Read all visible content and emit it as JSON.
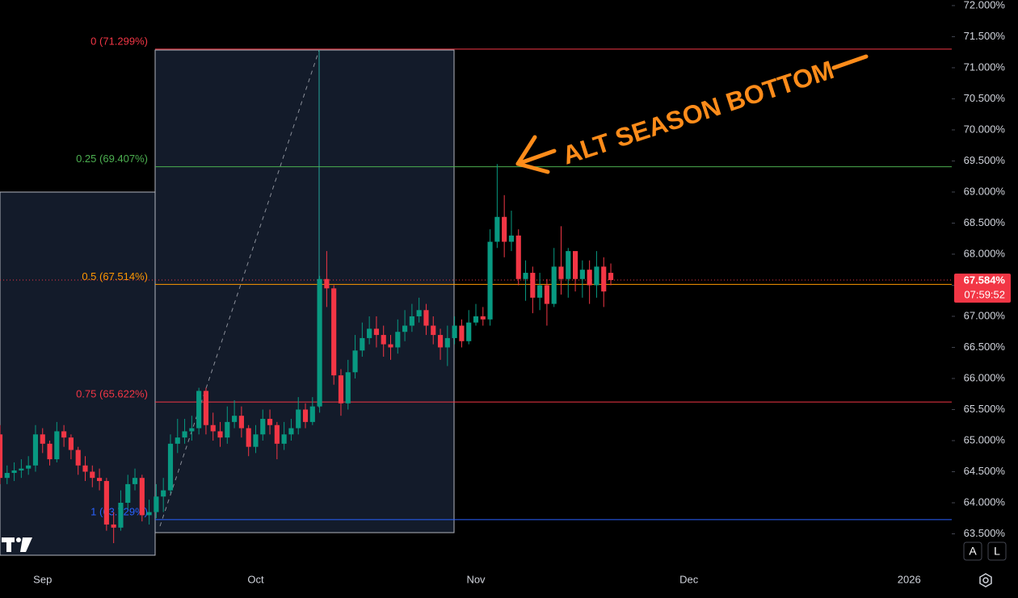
{
  "chart_data": {
    "type": "candlestick",
    "up_color": "#089981",
    "down_color": "#f23645",
    "xlim": [
      0,
      134
    ],
    "xticks": [
      {
        "value": 6,
        "label": "Sep"
      },
      {
        "value": 36,
        "label": "Oct"
      },
      {
        "value": 67,
        "label": "Nov"
      },
      {
        "value": 97,
        "label": "Dec"
      },
      {
        "value": 128,
        "label": "2026"
      }
    ],
    "ylim": [
      63.0,
      72.09
    ],
    "yticks": [
      {
        "value": 63.5,
        "label": "63.500%"
      },
      {
        "value": 64,
        "label": "64.000%"
      },
      {
        "value": 64.5,
        "label": "64.500%"
      },
      {
        "value": 65,
        "label": "65.000%"
      },
      {
        "value": 65.5,
        "label": "65.500%"
      },
      {
        "value": 66,
        "label": "66.000%"
      },
      {
        "value": 66.5,
        "label": "66.500%"
      },
      {
        "value": 67,
        "label": "67.000%"
      },
      {
        "value": 67.5,
        "label": "67.500%"
      },
      {
        "value": 68,
        "label": "68.000%"
      },
      {
        "value": 68.5,
        "label": "68.500%"
      },
      {
        "value": 69,
        "label": "69.000%"
      },
      {
        "value": 69.5,
        "label": "69.500%"
      },
      {
        "value": 70,
        "label": "70.000%"
      },
      {
        "value": 70.5,
        "label": "70.500%"
      },
      {
        "value": 71,
        "label": "71.000%"
      },
      {
        "value": 71.5,
        "label": "71.500%"
      },
      {
        "value": 72,
        "label": "72.000%"
      }
    ],
    "x": [
      0,
      1,
      2,
      3,
      4,
      5,
      6,
      7,
      8,
      9,
      10,
      11,
      12,
      13,
      14,
      15,
      16,
      17,
      18,
      19,
      20,
      21,
      22,
      23,
      24,
      25,
      26,
      27,
      28,
      29,
      30,
      31,
      32,
      33,
      34,
      35,
      36,
      37,
      38,
      39,
      40,
      41,
      42,
      43,
      44,
      45,
      46,
      47,
      48,
      49,
      50,
      51,
      52,
      53,
      54,
      55,
      56,
      57,
      58,
      59,
      60,
      61,
      62,
      63,
      64,
      65,
      66,
      67,
      68,
      69,
      70,
      71,
      72,
      73,
      74,
      75,
      76,
      77,
      78,
      79,
      80,
      81,
      82,
      83,
      84,
      85,
      86
    ],
    "open": [
      65.1,
      64.4,
      64.48,
      64.52,
      64.55,
      64.6,
      65.1,
      64.95,
      64.7,
      65.15,
      65.05,
      64.85,
      64.6,
      64.5,
      64.4,
      64.35,
      63.65,
      63.6,
      64.0,
      64.3,
      64.4,
      63.8,
      63.85,
      64.1,
      64.2,
      64.95,
      65.05,
      65.15,
      65.2,
      65.8,
      65.25,
      65.15,
      65.05,
      65.3,
      65.4,
      65.2,
      64.9,
      65.1,
      65.35,
      65.25,
      64.95,
      65.1,
      65.2,
      65.5,
      65.3,
      65.55,
      67.6,
      67.45,
      66.05,
      65.6,
      66.1,
      66.45,
      66.65,
      66.8,
      66.7,
      66.55,
      66.5,
      66.75,
      66.85,
      67.0,
      67.1,
      66.85,
      66.7,
      66.5,
      66.65,
      66.85,
      66.6,
      66.9,
      67.0,
      66.95,
      68.2,
      68.6,
      68.2,
      68.3,
      67.6,
      67.7,
      67.3,
      67.5,
      67.2,
      67.8,
      67.6,
      68.05,
      67.6,
      67.75,
      67.5,
      67.8,
      67.7
    ],
    "high": [
      65.25,
      64.6,
      64.65,
      64.7,
      64.75,
      65.25,
      65.2,
      65.0,
      65.3,
      65.25,
      65.1,
      64.9,
      64.75,
      64.6,
      64.55,
      64.4,
      63.85,
      64.2,
      64.45,
      64.55,
      64.45,
      64.05,
      64.3,
      64.4,
      65.1,
      65.35,
      65.35,
      65.4,
      65.85,
      65.85,
      65.45,
      65.3,
      65.55,
      65.65,
      65.55,
      65.25,
      65.25,
      65.5,
      65.5,
      65.3,
      65.3,
      65.35,
      65.7,
      65.6,
      65.7,
      67.65,
      68.05,
      67.5,
      66.15,
      66.3,
      66.7,
      66.9,
      67.0,
      67.0,
      66.85,
      66.7,
      66.95,
      67.1,
      67.2,
      67.3,
      67.2,
      67.0,
      66.8,
      66.85,
      67.0,
      66.95,
      67.1,
      67.2,
      67.15,
      68.4,
      69.45,
      68.95,
      68.7,
      68.4,
      67.9,
      67.8,
      67.7,
      67.6,
      68.1,
      68.45,
      68.1,
      68.0,
      67.9,
      67.9,
      68.05,
      67.95,
      67.85
    ],
    "low": [
      64.3,
      64.3,
      64.35,
      64.4,
      64.45,
      64.5,
      64.8,
      64.6,
      64.65,
      64.9,
      64.7,
      64.45,
      64.35,
      64.25,
      64.2,
      63.55,
      63.35,
      63.55,
      63.9,
      64.2,
      63.7,
      63.65,
      63.75,
      63.85,
      64.15,
      64.8,
      64.95,
      65.0,
      65.1,
      65.1,
      65.0,
      64.9,
      64.95,
      65.2,
      65.05,
      64.75,
      64.8,
      65.0,
      65.1,
      64.7,
      64.85,
      65.0,
      65.1,
      65.2,
      65.25,
      65.45,
      67.15,
      65.9,
      65.4,
      65.5,
      66.0,
      66.35,
      66.55,
      66.5,
      66.35,
      66.3,
      66.4,
      66.6,
      66.75,
      66.9,
      66.7,
      66.55,
      66.3,
      66.2,
      66.55,
      66.5,
      66.55,
      66.85,
      66.85,
      66.85,
      68.1,
      67.95,
      68.05,
      67.5,
      67.25,
      67.05,
      67.1,
      66.85,
      67.15,
      67.35,
      67.3,
      67.4,
      67.3,
      67.2,
      67.3,
      67.15,
      67.5
    ],
    "close": [
      64.4,
      64.48,
      64.52,
      64.55,
      64.6,
      65.1,
      64.95,
      64.7,
      65.15,
      65.05,
      64.85,
      64.6,
      64.5,
      64.4,
      64.35,
      63.65,
      63.6,
      64.0,
      64.3,
      64.4,
      63.8,
      63.85,
      64.1,
      64.2,
      64.95,
      65.05,
      65.15,
      65.2,
      65.8,
      65.25,
      65.15,
      65.05,
      65.3,
      65.4,
      65.2,
      64.9,
      65.1,
      65.35,
      65.25,
      64.95,
      65.1,
      65.2,
      65.5,
      65.3,
      65.55,
      67.6,
      67.45,
      66.05,
      65.6,
      66.1,
      66.45,
      66.65,
      66.8,
      66.7,
      66.55,
      66.5,
      66.75,
      66.85,
      67.0,
      67.1,
      66.85,
      66.7,
      66.5,
      66.65,
      66.85,
      66.6,
      66.9,
      67.0,
      66.95,
      68.2,
      68.6,
      68.2,
      68.3,
      67.6,
      67.7,
      67.3,
      67.5,
      67.2,
      67.8,
      67.6,
      68.05,
      67.6,
      67.75,
      67.5,
      67.8,
      67.4,
      67.584
    ],
    "fib_levels": [
      {
        "label": "0 (71.299%)",
        "value": 71.299,
        "color": "#f23645"
      },
      {
        "label": "0.25 (69.407%)",
        "value": 69.407,
        "color": "#4caf50"
      },
      {
        "label": "0.5 (67.514%)",
        "value": 67.514,
        "color": "#ff9800"
      },
      {
        "label": "0.75 (65.622%)",
        "value": 65.622,
        "color": "#f23645"
      },
      {
        "label": "1 (63.729%)",
        "value": 63.729,
        "color": "#2962ff"
      }
    ],
    "last_price": {
      "value": 67.584,
      "label": "67.584%"
    },
    "countdown": "07:59:52",
    "annotation": "ALT SEASON BOTTOM",
    "buttons": [
      "A",
      "L"
    ]
  }
}
